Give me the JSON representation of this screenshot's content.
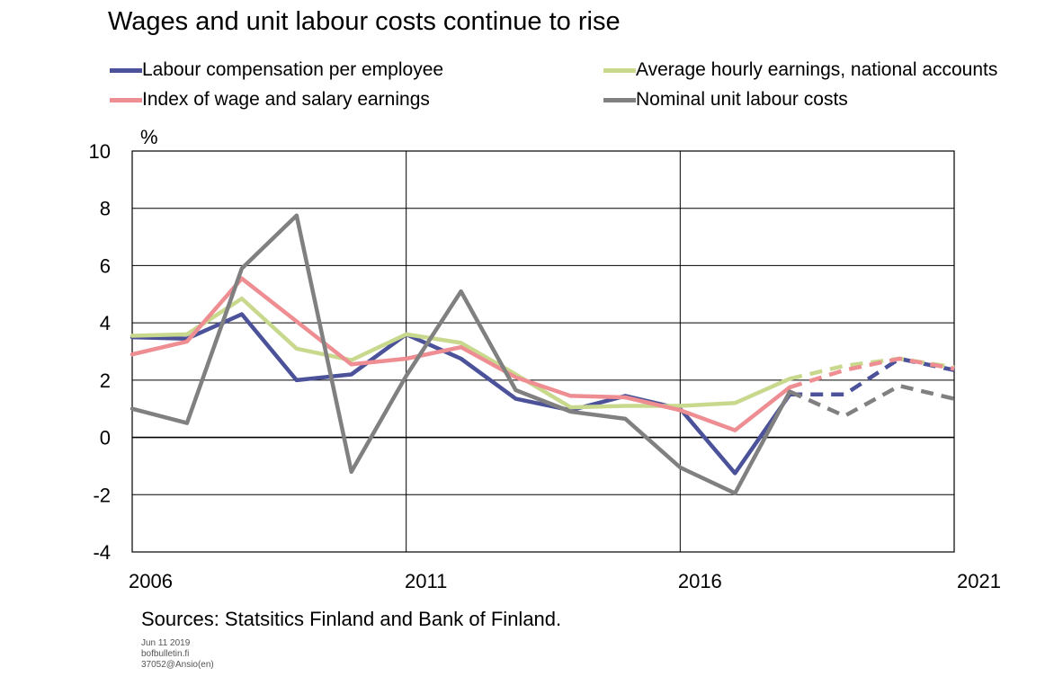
{
  "chart_data": {
    "type": "line",
    "title": "Wages and unit labour costs continue to rise",
    "ylabel": "%",
    "xlim": [
      2006,
      2021
    ],
    "ylim": [
      -4,
      10
    ],
    "yticks": [
      -4,
      -2,
      0,
      2,
      4,
      6,
      8,
      10
    ],
    "xticks": [
      2006,
      2011,
      2016,
      2021
    ],
    "grid": true,
    "legend": "top",
    "forecast_start": 2018,
    "series": [
      {
        "name": "Labour compensation per employee",
        "color": "#4B5299",
        "points": [
          [
            2006,
            3.5
          ],
          [
            2007,
            3.45
          ],
          [
            2008,
            4.3
          ],
          [
            2009,
            2.0
          ],
          [
            2010,
            2.2
          ],
          [
            2011,
            3.6
          ],
          [
            2012,
            2.75
          ],
          [
            2013,
            1.35
          ],
          [
            2014,
            0.95
          ],
          [
            2015,
            1.45
          ],
          [
            2016,
            1.0
          ],
          [
            2017,
            -1.25
          ],
          [
            2018,
            1.5
          ],
          [
            2019,
            1.5
          ],
          [
            2020,
            2.75
          ],
          [
            2021,
            2.35
          ]
        ]
      },
      {
        "name": "Average hourly earnings, national accounts",
        "color": "#C8D98E",
        "points": [
          [
            2006,
            3.55
          ],
          [
            2007,
            3.6
          ],
          [
            2008,
            4.85
          ],
          [
            2009,
            3.1
          ],
          [
            2010,
            2.7
          ],
          [
            2011,
            3.6
          ],
          [
            2012,
            3.3
          ],
          [
            2013,
            2.2
          ],
          [
            2014,
            1.05
          ],
          [
            2015,
            1.1
          ],
          [
            2016,
            1.1
          ],
          [
            2017,
            1.2
          ],
          [
            2018,
            2.05
          ],
          [
            2019,
            2.5
          ],
          [
            2020,
            2.75
          ],
          [
            2021,
            2.45
          ]
        ]
      },
      {
        "name": "Index of wage and salary earnings",
        "color": "#EE8E93",
        "points": [
          [
            2006,
            2.9
          ],
          [
            2007,
            3.35
          ],
          [
            2008,
            5.55
          ],
          [
            2009,
            4.05
          ],
          [
            2010,
            2.55
          ],
          [
            2011,
            2.75
          ],
          [
            2012,
            3.15
          ],
          [
            2013,
            2.1
          ],
          [
            2014,
            1.45
          ],
          [
            2015,
            1.4
          ],
          [
            2016,
            0.95
          ],
          [
            2017,
            0.25
          ],
          [
            2018,
            1.75
          ],
          [
            2019,
            2.35
          ],
          [
            2020,
            2.75
          ],
          [
            2021,
            2.4
          ]
        ]
      },
      {
        "name": "Nominal unit labour costs",
        "color": "#808080",
        "points": [
          [
            2006,
            1.0
          ],
          [
            2007,
            0.5
          ],
          [
            2008,
            5.9
          ],
          [
            2009,
            7.75
          ],
          [
            2010,
            -1.2
          ],
          [
            2011,
            2.15
          ],
          [
            2012,
            5.1
          ],
          [
            2013,
            1.65
          ],
          [
            2014,
            0.9
          ],
          [
            2015,
            0.65
          ],
          [
            2016,
            -1.05
          ],
          [
            2017,
            -1.95
          ],
          [
            2018,
            1.6
          ],
          [
            2019,
            0.75
          ],
          [
            2020,
            1.8
          ],
          [
            2021,
            1.35
          ]
        ]
      }
    ]
  },
  "source": "Sources: Statsitics Finland and Bank of Finland.",
  "meta": [
    "Jun 11 2019",
    "bofbulletin.fi",
    "37052@Ansio(en)"
  ]
}
